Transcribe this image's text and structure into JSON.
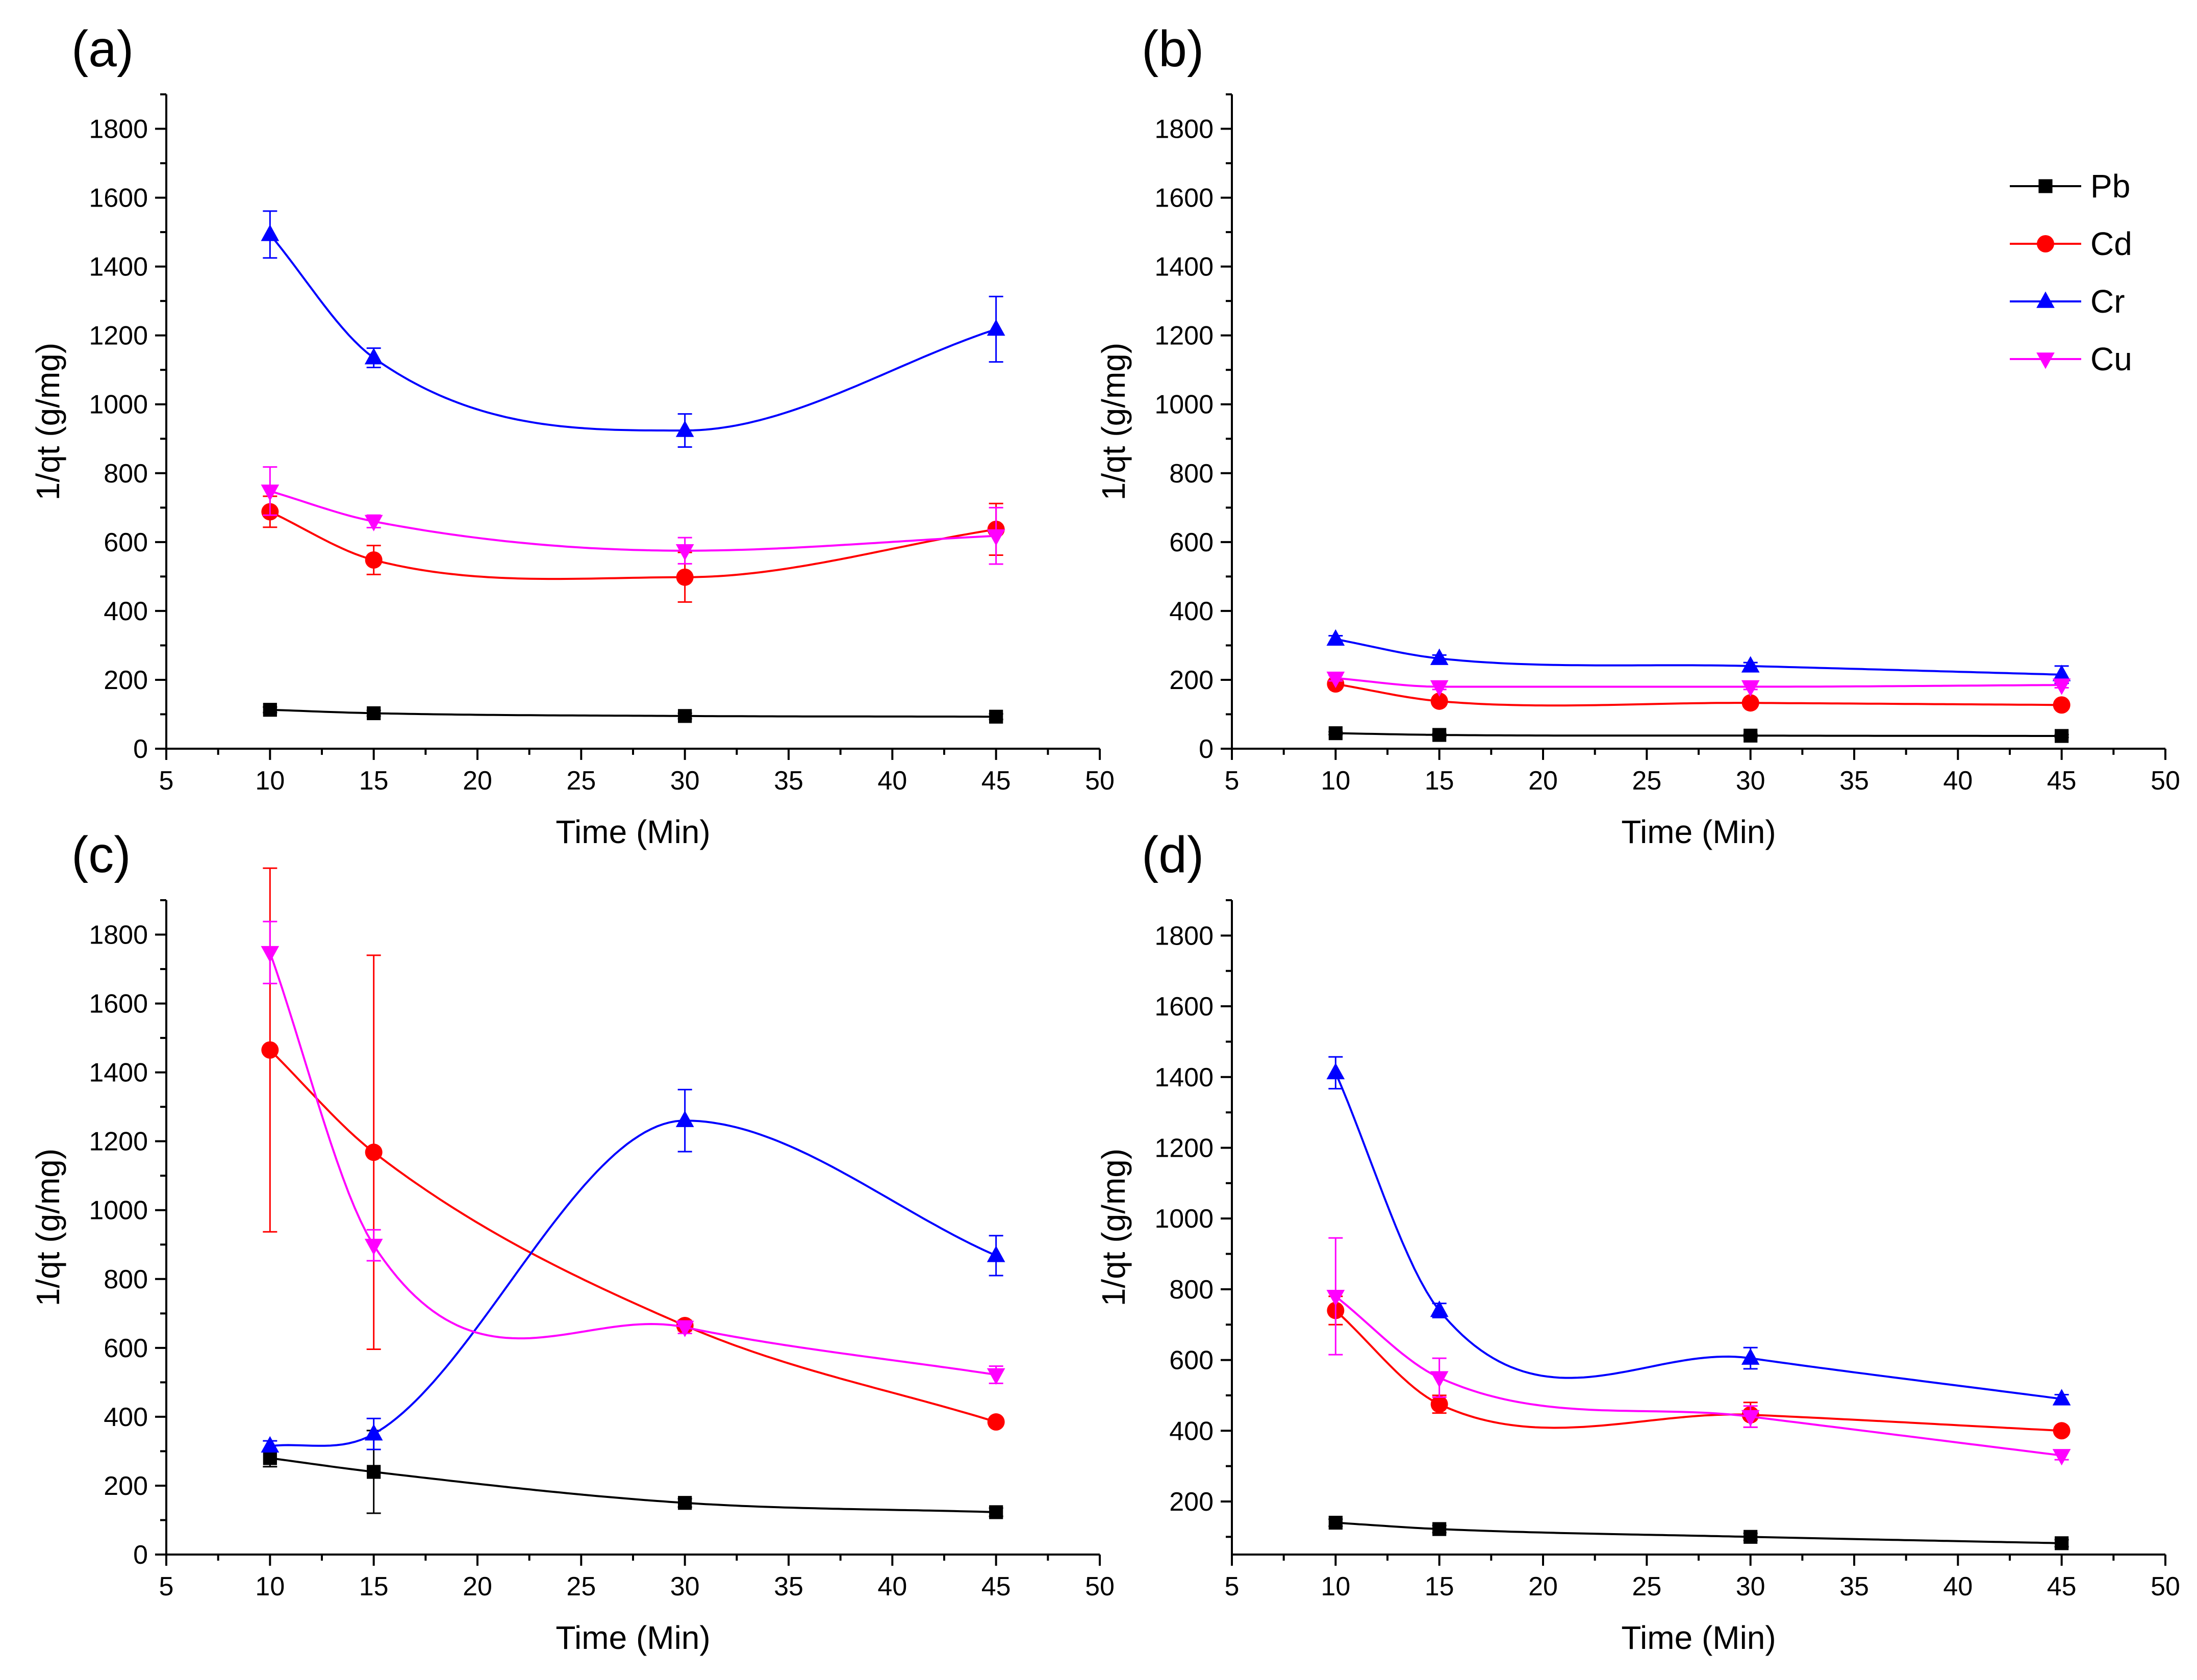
{
  "chart_data": [
    {
      "panel": "(a)",
      "type": "scatter",
      "xlabel": "Time (Min)",
      "ylabel": "1/qt (g/mg)",
      "xlim": [
        5,
        50
      ],
      "ylim": [
        0,
        1900
      ],
      "xticks": [
        5,
        10,
        15,
        20,
        25,
        30,
        35,
        40,
        45,
        50
      ],
      "yticks": [
        0,
        200,
        400,
        600,
        800,
        1000,
        1200,
        1400,
        1600,
        1800
      ],
      "series": [
        {
          "name": "Pb",
          "color": "#000000",
          "marker": "square",
          "x": [
            10,
            15,
            30,
            45
          ],
          "y": [
            113,
            103,
            95,
            93
          ],
          "err": [
            8,
            8,
            8,
            8
          ]
        },
        {
          "name": "Cd",
          "color": "#ff0000",
          "marker": "circle",
          "x": [
            10,
            15,
            30,
            45
          ],
          "y": [
            688,
            548,
            498,
            637
          ],
          "err": [
            45,
            42,
            72,
            75
          ]
        },
        {
          "name": "Cr",
          "color": "#0000ff",
          "marker": "triangle-up",
          "x": [
            10,
            15,
            30,
            45
          ],
          "y": [
            1493,
            1135,
            924,
            1218
          ],
          "err": [
            68,
            28,
            48,
            95
          ]
        },
        {
          "name": "Cu",
          "color": "#ff00ff",
          "marker": "triangle-down",
          "x": [
            10,
            15,
            30,
            45
          ],
          "y": [
            748,
            660,
            575,
            618
          ],
          "err": [
            70,
            18,
            38,
            82
          ]
        }
      ]
    },
    {
      "panel": "(b)",
      "type": "scatter",
      "xlabel": "Time (Min)",
      "ylabel": "1/qt (g/mg)",
      "xlim": [
        5,
        50
      ],
      "ylim": [
        0,
        1900
      ],
      "xticks": [
        5,
        10,
        15,
        20,
        25,
        30,
        35,
        40,
        45,
        50
      ],
      "yticks": [
        0,
        200,
        400,
        600,
        800,
        1000,
        1200,
        1400,
        1600,
        1800
      ],
      "legend": "top-right",
      "series": [
        {
          "name": "Pb",
          "color": "#000000",
          "marker": "square",
          "x": [
            10,
            15,
            30,
            45
          ],
          "y": [
            45,
            40,
            38,
            37
          ],
          "err": [
            4,
            4,
            4,
            4
          ]
        },
        {
          "name": "Cd",
          "color": "#ff0000",
          "marker": "circle",
          "x": [
            10,
            15,
            30,
            45
          ],
          "y": [
            188,
            138,
            133,
            127
          ],
          "err": [
            8,
            8,
            8,
            8
          ]
        },
        {
          "name": "Cr",
          "color": "#0000ff",
          "marker": "triangle-up",
          "x": [
            10,
            15,
            30,
            45
          ],
          "y": [
            318,
            262,
            240,
            215
          ],
          "err": [
            10,
            10,
            10,
            25
          ]
        },
        {
          "name": "Cu",
          "color": "#ff00ff",
          "marker": "triangle-down",
          "x": [
            10,
            15,
            30,
            45
          ],
          "y": [
            205,
            180,
            180,
            185
          ],
          "err": [
            8,
            8,
            8,
            8
          ]
        }
      ]
    },
    {
      "panel": "(c)",
      "type": "scatter",
      "xlabel": "Time (Min)",
      "ylabel": "1/qt (g/mg)",
      "xlim": [
        5,
        50
      ],
      "ylim": [
        0,
        1900
      ],
      "xticks": [
        5,
        10,
        15,
        20,
        25,
        30,
        35,
        40,
        45,
        50
      ],
      "yticks": [
        0,
        200,
        400,
        600,
        800,
        1000,
        1200,
        1400,
        1600,
        1800
      ],
      "series": [
        {
          "name": "Pb",
          "color": "#000000",
          "marker": "square",
          "x": [
            10,
            15,
            30,
            45
          ],
          "y": [
            280,
            240,
            150,
            123
          ],
          "err": [
            25,
            120,
            12,
            12
          ]
        },
        {
          "name": "Cd",
          "color": "#ff0000",
          "marker": "circle",
          "x": [
            10,
            15,
            30,
            45
          ],
          "y": [
            1465,
            1168,
            665,
            385
          ],
          "err": [
            528,
            572,
            15,
            12
          ]
        },
        {
          "name": "Cr",
          "color": "#0000ff",
          "marker": "triangle-up",
          "x": [
            10,
            15,
            30,
            45
          ],
          "y": [
            315,
            350,
            1260,
            868
          ],
          "err": [
            15,
            45,
            90,
            58
          ]
        },
        {
          "name": "Cu",
          "color": "#ff00ff",
          "marker": "triangle-down",
          "x": [
            10,
            15,
            30,
            45
          ],
          "y": [
            1748,
            898,
            660,
            522
          ],
          "err": [
            90,
            45,
            18,
            25
          ]
        }
      ]
    },
    {
      "panel": "(d)",
      "type": "scatter",
      "xlabel": "Time (Min)",
      "ylabel": "1/qt (g/mg)",
      "xlim": [
        5,
        50
      ],
      "ylim": [
        50,
        1900
      ],
      "xticks": [
        5,
        10,
        15,
        20,
        25,
        30,
        35,
        40,
        45,
        50
      ],
      "yticks": [
        200,
        400,
        600,
        800,
        1000,
        1200,
        1400,
        1600,
        1800
      ],
      "series": [
        {
          "name": "Pb",
          "color": "#000000",
          "marker": "square",
          "x": [
            10,
            15,
            30,
            45
          ],
          "y": [
            140,
            122,
            100,
            82
          ],
          "err": [
            10,
            10,
            10,
            10
          ]
        },
        {
          "name": "Cd",
          "color": "#ff0000",
          "marker": "circle",
          "x": [
            10,
            15,
            30,
            45
          ],
          "y": [
            740,
            475,
            445,
            400
          ],
          "err": [
            40,
            25,
            35,
            12
          ]
        },
        {
          "name": "Cr",
          "color": "#0000ff",
          "marker": "triangle-up",
          "x": [
            10,
            15,
            30,
            45
          ],
          "y": [
            1412,
            740,
            605,
            490
          ],
          "err": [
            45,
            20,
            30,
            12
          ]
        },
        {
          "name": "Cu",
          "color": "#ff00ff",
          "marker": "triangle-down",
          "x": [
            10,
            15,
            30,
            45
          ],
          "y": [
            780,
            550,
            440,
            330
          ],
          "err": [
            165,
            55,
            30,
            12
          ]
        }
      ]
    }
  ],
  "legend": {
    "entries": [
      {
        "label": "Pb",
        "color": "#000000",
        "marker": "square"
      },
      {
        "label": "Cd",
        "color": "#ff0000",
        "marker": "circle"
      },
      {
        "label": "Cr",
        "color": "#0000ff",
        "marker": "triangle-up"
      },
      {
        "label": "Cu",
        "color": "#ff00ff",
        "marker": "triangle-down"
      }
    ]
  }
}
